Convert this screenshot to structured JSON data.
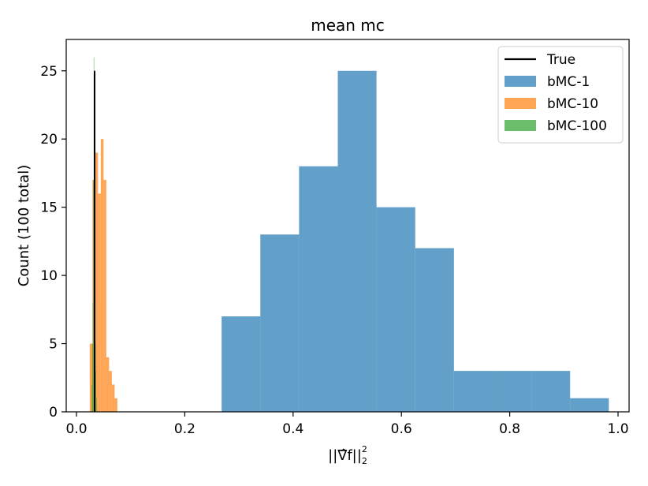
{
  "chart_data": {
    "type": "histogram",
    "title": "mean mc",
    "xlabel": "||∇̂f||",
    "xlabel_sub": "2",
    "xlabel_sup": "2",
    "ylabel": "Count (100 total)",
    "xlim": [
      -0.02,
      1.0
    ],
    "ylim": [
      0,
      27.3
    ],
    "x_ticks": [
      0.0,
      0.2,
      0.4,
      0.6,
      0.8,
      1.0
    ],
    "x_tick_labels": [
      "0.0",
      "0.2",
      "0.4",
      "0.6",
      "0.8",
      "1.0"
    ],
    "y_ticks": [
      0,
      5,
      10,
      15,
      20,
      25
    ],
    "y_tick_labels": [
      "0",
      "5",
      "10",
      "15",
      "20",
      "25"
    ],
    "true_value": {
      "name": "True",
      "x": 0.0335,
      "height": 25,
      "color": "#000000"
    },
    "legend_position": "top-right",
    "series": [
      {
        "name": "bMC-1",
        "color": "#1f77b4",
        "bin_edges": [
          0.268,
          0.3395,
          0.411,
          0.4825,
          0.554,
          0.6255,
          0.697,
          0.7685,
          0.84,
          0.9115,
          0.983
        ],
        "counts": [
          7,
          13,
          18,
          25,
          15,
          12,
          3,
          3,
          3,
          1
        ]
      },
      {
        "name": "bMC-10",
        "color": "#ff7f0e",
        "bin_edges": [
          0.0245,
          0.0296,
          0.0347,
          0.0398,
          0.0449,
          0.05,
          0.0551,
          0.0602,
          0.0653,
          0.0704,
          0.0755
        ],
        "counts": [
          5,
          17,
          19,
          16,
          20,
          17,
          4,
          3,
          2,
          1
        ]
      },
      {
        "name": "bMC-100",
        "color": "#2ca02c",
        "bin_edges": [
          0.0282,
          0.0291,
          0.03,
          0.0309,
          0.0318,
          0.0327,
          0.0336,
          0.0345,
          0.0354,
          0.0363,
          0.0372
        ],
        "counts": [
          2,
          5,
          8,
          17,
          26,
          25,
          8,
          5,
          3,
          1
        ]
      }
    ]
  }
}
